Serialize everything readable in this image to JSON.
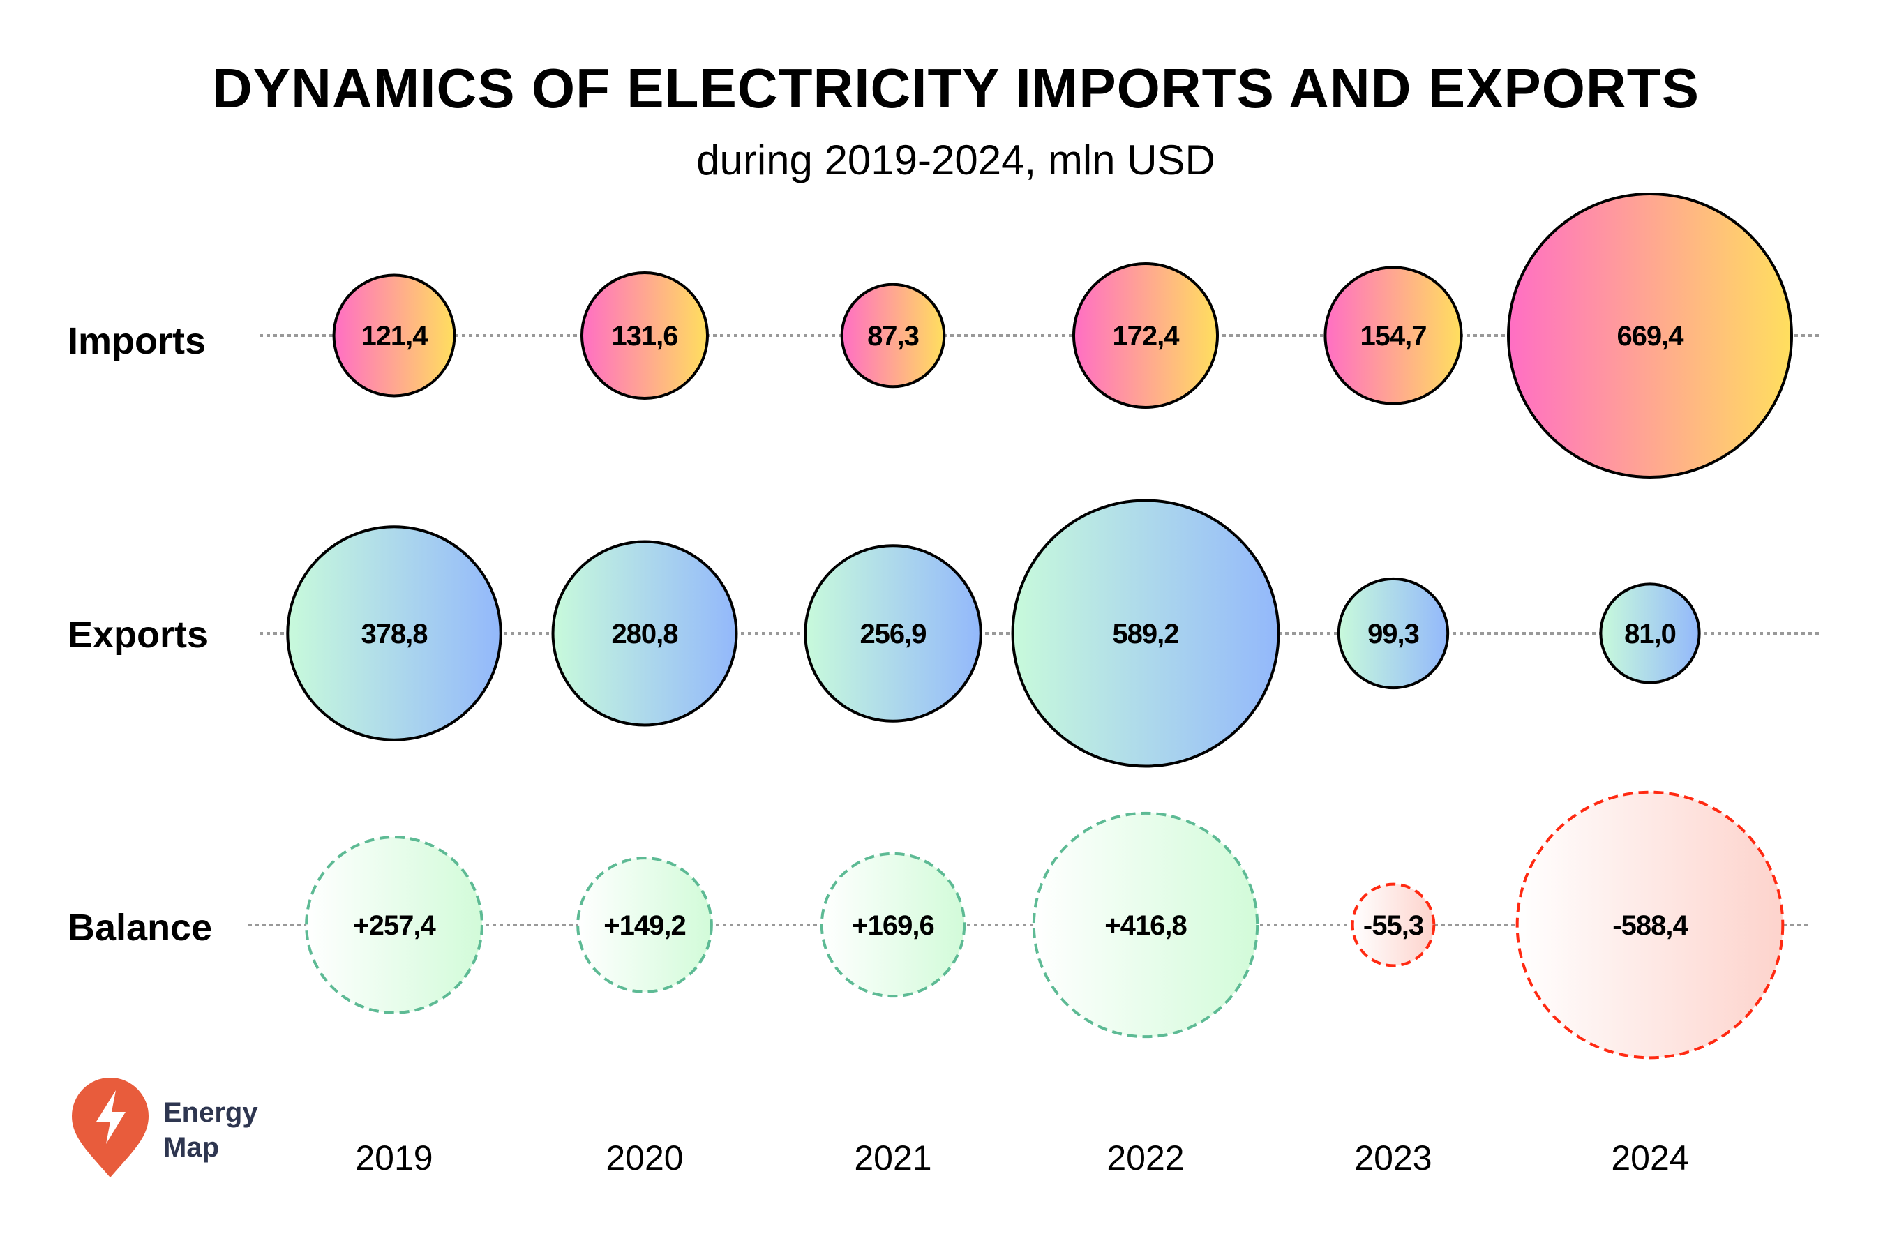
{
  "chart_data": {
    "type": "bubble",
    "title": "DYNAMICS OF ELECTRICITY IMPORTS AND EXPORTS",
    "subtitle": "during 2019-2024, mln USD",
    "unit": "mln USD",
    "categories": [
      "2019",
      "2020",
      "2021",
      "2022",
      "2023",
      "2024"
    ],
    "series": [
      {
        "name": "Imports",
        "values": [
          121.4,
          131.6,
          87.3,
          172.4,
          154.7,
          669.4
        ],
        "labels": [
          "121,4",
          "131,6",
          "87,3",
          "172,4",
          "154,7",
          "669,4"
        ]
      },
      {
        "name": "Exports",
        "values": [
          378.8,
          280.8,
          256.9,
          589.2,
          99.3,
          81.0
        ],
        "labels": [
          "378,8",
          "280,8",
          "256,9",
          "589,2",
          "99,3",
          "81,0"
        ]
      },
      {
        "name": "Balance",
        "values": [
          257.4,
          149.2,
          169.6,
          416.8,
          -55.3,
          -588.4
        ],
        "labels": [
          "+257,4",
          "+149,2",
          "+169,6",
          "+416,8",
          "-55,3",
          "-588,4"
        ]
      }
    ],
    "grid": false,
    "legend": "none"
  },
  "colors": {
    "imports_gradient": [
      "#ff6ec4",
      "#ffdf5e"
    ],
    "exports_gradient": [
      "#c8fadb",
      "#93b8fb"
    ],
    "balance_positive_gradient": [
      "#ffffff",
      "#d2fbd9"
    ],
    "balance_positive_stroke": "#5dba94",
    "balance_negative_gradient": [
      "#ffffff",
      "#fdd3cc"
    ],
    "balance_negative_stroke": "#ff2a12",
    "connector": "#999999",
    "logo": "#e85c3c",
    "logo_text": "#2e3650"
  },
  "logo": {
    "line1": "Energy",
    "line2": "Map",
    "icon": "lightning-pin-icon"
  }
}
